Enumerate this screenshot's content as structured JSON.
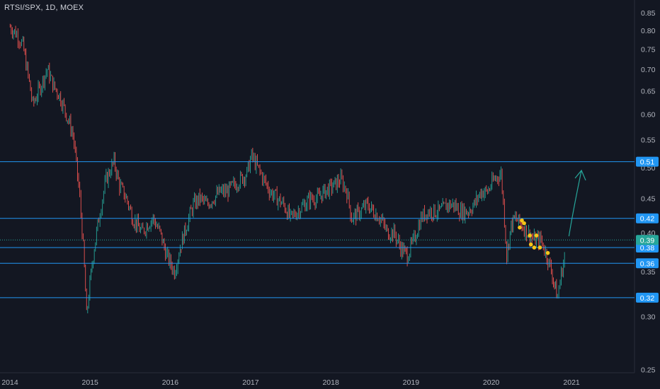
{
  "header": {
    "symbol_title": "RTSI/SPX, 1D, MOEX"
  },
  "colors": {
    "background": "#131722",
    "axis_text": "#b2b5be",
    "candle_up": "#26a69a",
    "candle_down": "#ef5350",
    "level_line": "#2196f3",
    "current_price_badge": "#26a69a",
    "marker": "#f5c518",
    "arrow": "#26a69a"
  },
  "chart_data": {
    "type": "line",
    "style": "candlestick",
    "y_scale": "log",
    "ylim": [
      0.245,
      0.875
    ],
    "y_ticks": [
      "0.85",
      "0.80",
      "0.75",
      "0.70",
      "0.65",
      "0.60",
      "0.55",
      "0.50",
      "0.45",
      "0.40",
      "0.35",
      "0.30",
      "0.25"
    ],
    "x_ticks": [
      "2014",
      "2015",
      "2016",
      "2017",
      "2018",
      "2019",
      "2020",
      "2021"
    ],
    "xlim": [
      "2014-01-01",
      "2021-12-31"
    ],
    "series": [
      {
        "x": [
          "2014-01-02",
          "2014-02-01",
          "2014-03-01",
          "2014-03-20",
          "2014-04-15",
          "2014-05-20",
          "2014-06-20",
          "2014-07-20",
          "2014-08-15",
          "2014-09-15",
          "2014-10-15",
          "2014-11-15",
          "2014-12-01",
          "2014-12-16",
          "2015-01-15",
          "2015-02-15",
          "2015-03-15",
          "2015-04-20",
          "2015-05-15",
          "2015-06-15",
          "2015-07-15",
          "2015-08-24",
          "2015-09-15",
          "2015-10-15",
          "2015-11-15",
          "2015-12-15",
          "2016-01-20",
          "2016-02-15",
          "2016-03-15",
          "2016-04-15",
          "2016-05-15",
          "2016-06-15",
          "2016-07-15",
          "2016-08-15",
          "2016-09-15",
          "2016-10-15",
          "2016-11-15",
          "2016-12-15",
          "2017-01-05",
          "2017-02-01",
          "2017-03-01",
          "2017-04-01",
          "2017-05-01",
          "2017-06-01",
          "2017-07-01",
          "2017-08-01",
          "2017-09-01",
          "2017-10-01",
          "2017-11-01",
          "2017-12-01",
          "2018-01-15",
          "2018-02-15",
          "2018-03-15",
          "2018-04-06",
          "2018-05-15",
          "2018-06-15",
          "2018-07-15",
          "2018-08-15",
          "2018-09-15",
          "2018-10-15",
          "2018-11-15",
          "2018-12-15",
          "2019-01-15",
          "2019-02-15",
          "2019-03-15",
          "2019-04-15",
          "2019-05-15",
          "2019-06-15",
          "2019-07-15",
          "2019-08-15",
          "2019-09-15",
          "2019-10-15",
          "2019-11-15",
          "2019-12-15",
          "2020-01-15",
          "2020-02-15",
          "2020-03-12",
          "2020-04-01",
          "2020-04-20",
          "2020-05-20",
          "2020-06-15",
          "2020-07-15",
          "2020-08-15",
          "2020-09-10",
          "2020-10-01",
          "2020-10-20",
          "2020-10-29",
          "2020-11-10",
          "2020-11-25",
          "2020-12-05"
        ],
        "y": [
          0.81,
          0.79,
          0.76,
          0.7,
          0.62,
          0.66,
          0.7,
          0.66,
          0.64,
          0.6,
          0.56,
          0.45,
          0.38,
          0.3,
          0.37,
          0.43,
          0.48,
          0.51,
          0.47,
          0.45,
          0.42,
          0.4,
          0.41,
          0.42,
          0.4,
          0.37,
          0.35,
          0.38,
          0.41,
          0.44,
          0.45,
          0.44,
          0.45,
          0.46,
          0.46,
          0.47,
          0.48,
          0.49,
          0.52,
          0.5,
          0.48,
          0.46,
          0.45,
          0.44,
          0.42,
          0.43,
          0.44,
          0.45,
          0.45,
          0.46,
          0.47,
          0.48,
          0.46,
          0.42,
          0.43,
          0.44,
          0.43,
          0.42,
          0.4,
          0.4,
          0.38,
          0.37,
          0.39,
          0.42,
          0.43,
          0.43,
          0.43,
          0.44,
          0.44,
          0.43,
          0.43,
          0.44,
          0.46,
          0.46,
          0.48,
          0.49,
          0.37,
          0.41,
          0.42,
          0.41,
          0.4,
          0.39,
          0.39,
          0.37,
          0.35,
          0.33,
          0.32,
          0.34,
          0.36,
          0.38
        ]
      }
    ],
    "levels": [
      0.51,
      0.42,
      0.38,
      0.36,
      0.32
    ],
    "level_labels": [
      "0.51",
      "0.42",
      "0.38",
      "0.36",
      "0.32"
    ],
    "current_price": 0.39,
    "current_price_label": "0.39",
    "markers": [
      {
        "x": "2020-05-20",
        "y": 0.417
      },
      {
        "x": "2020-05-30",
        "y": 0.413
      },
      {
        "x": "2020-05-10",
        "y": 0.407
      },
      {
        "x": "2020-06-25",
        "y": 0.396
      },
      {
        "x": "2020-07-25",
        "y": 0.396
      },
      {
        "x": "2020-06-30",
        "y": 0.384
      },
      {
        "x": "2020-07-15",
        "y": 0.38
      },
      {
        "x": "2020-08-10",
        "y": 0.38
      },
      {
        "x": "2020-09-15",
        "y": 0.373
      }
    ],
    "arrow": {
      "from": {
        "x": "2020-12-20",
        "y": 0.395
      },
      "to": {
        "x": "2021-02-15",
        "y": 0.495
      }
    }
  }
}
